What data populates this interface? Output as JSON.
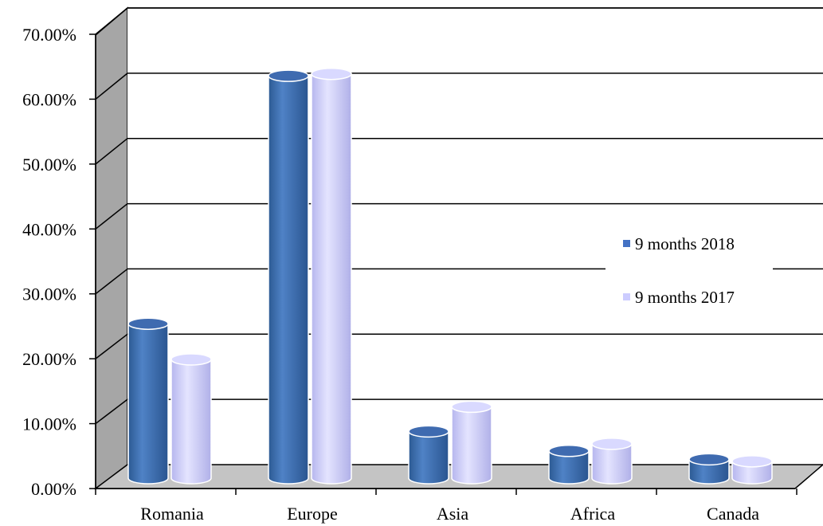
{
  "chart_data": {
    "type": "bar",
    "title": "",
    "xlabel": "",
    "ylabel": "",
    "categories": [
      "Romania",
      "Europe",
      "Asia",
      "Africa",
      "Canada"
    ],
    "series": [
      {
        "name": "9 months 2018",
        "values": [
          23.8,
          62.0,
          7.2,
          4.2,
          2.9
        ],
        "color": "#4472c4"
      },
      {
        "name": "9 months 2017",
        "values": [
          18.3,
          62.3,
          11.0,
          5.3,
          2.6
        ],
        "color": "#ccccff"
      }
    ],
    "ylim": [
      0,
      70
    ],
    "yticks": [
      "0.00%",
      "10.00%",
      "20.00%",
      "30.00%",
      "40.00%",
      "50.00%",
      "60.00%",
      "70.00%"
    ],
    "grid": true,
    "legend": "right",
    "style": "3d-cylinder"
  }
}
